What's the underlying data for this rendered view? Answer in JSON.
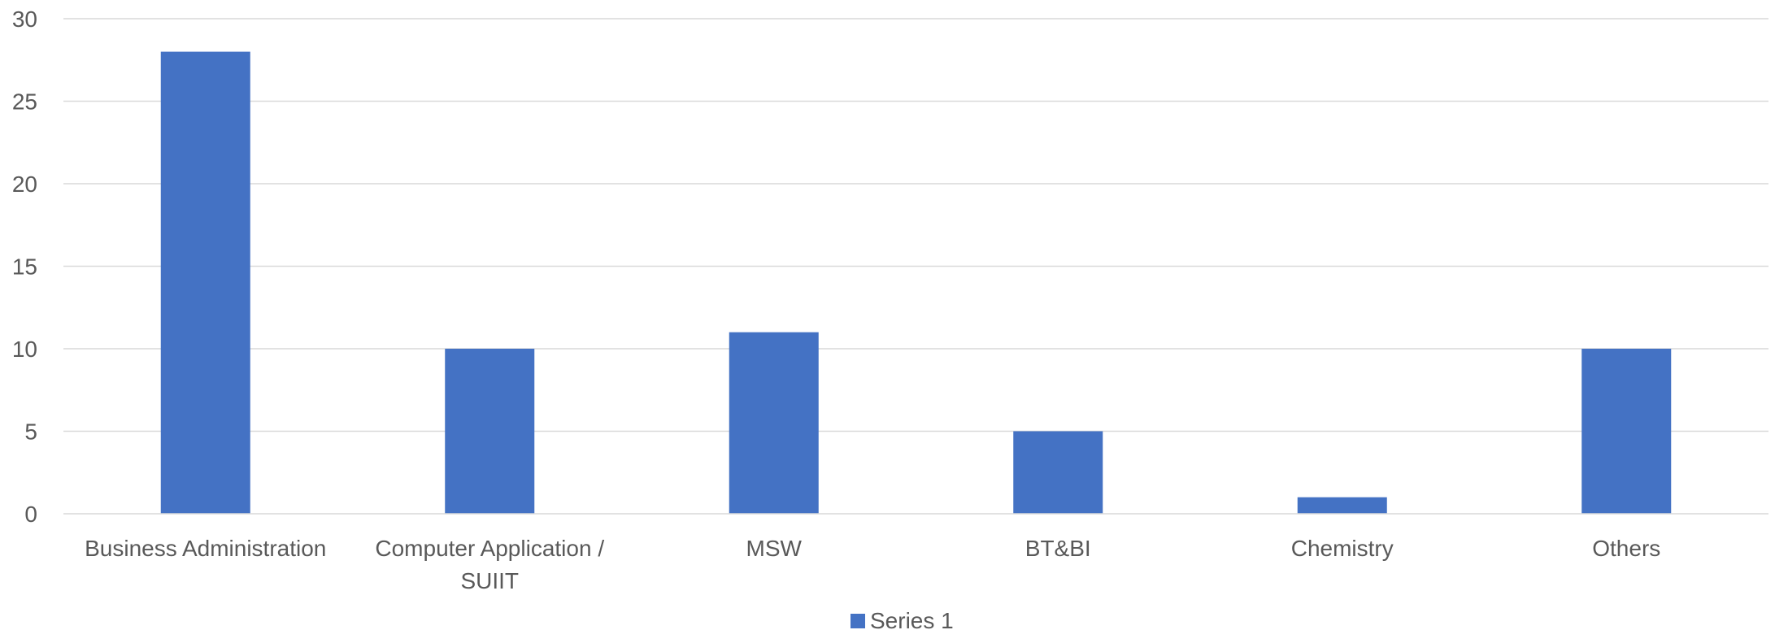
{
  "chart_data": {
    "type": "bar",
    "categories": [
      [
        "Business Administration"
      ],
      [
        "Computer Application /",
        "SUIIT"
      ],
      [
        "MSW"
      ],
      [
        "BT&BI"
      ],
      [
        "Chemistry"
      ],
      [
        "Others"
      ]
    ],
    "series": [
      {
        "name": "Series 1",
        "values": [
          28,
          10,
          11,
          5,
          1,
          10
        ],
        "color": "#4472c4"
      }
    ],
    "ylim": [
      0,
      30
    ],
    "yticks": [
      0,
      5,
      10,
      15,
      20,
      25,
      30
    ],
    "grid": true,
    "legend_position": "bottom",
    "title": "",
    "xlabel": "",
    "ylabel": ""
  }
}
